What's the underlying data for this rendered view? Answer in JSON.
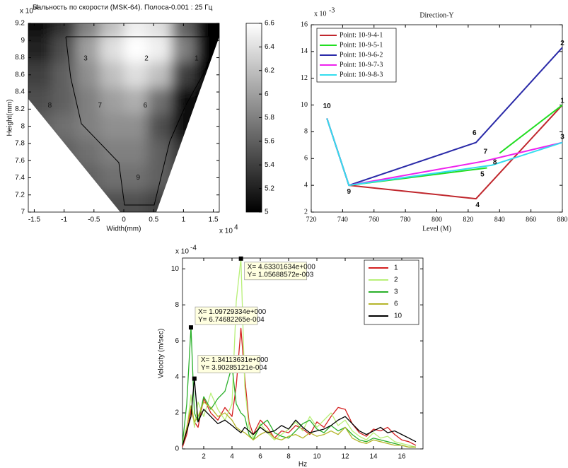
{
  "chart_data": [
    {
      "type": "heatmap",
      "title": "Бальность по скорости (MSK-64). Полоса-0.001 : 25 Гц",
      "xlabel": "Width(mm)",
      "ylabel": "Height(mm)",
      "x_multiplier": {
        "base": "x 10",
        "exponent": "4"
      },
      "y_multiplier": {
        "base": "x 10",
        "exponent": "4"
      },
      "colormap": "gray",
      "x": [
        -1.4,
        -1.0,
        -0.6,
        -0.2,
        0.2,
        0.6,
        1.0,
        1.4
      ],
      "y": [
        9.2,
        8.9,
        8.6,
        8.3,
        8.0,
        7.7,
        7.4,
        7.1
      ],
      "z": [
        [
          5.1,
          5.3,
          5.8,
          6.2,
          6.5,
          6.4,
          5.6,
          5.0
        ],
        [
          5.2,
          5.5,
          6.0,
          6.4,
          6.6,
          6.5,
          5.8,
          5.0
        ],
        [
          5.4,
          5.6,
          5.9,
          6.2,
          6.4,
          6.2,
          5.4,
          5.0
        ],
        [
          5.5,
          5.6,
          5.8,
          6.0,
          6.1,
          5.7,
          5.1,
          5.0
        ],
        [
          5.6,
          5.7,
          5.8,
          5.9,
          5.9,
          5.5,
          5.1,
          5.1
        ],
        [
          5.6,
          5.6,
          5.7,
          5.8,
          5.8,
          5.6,
          5.3,
          5.2
        ],
        [
          5.5,
          5.5,
          5.6,
          5.7,
          5.7,
          5.6,
          5.4,
          5.3
        ],
        [
          5.4,
          5.4,
          5.5,
          5.5,
          5.5,
          5.4,
          5.3,
          5.2
        ]
      ],
      "xlim": [
        -1.6,
        1.6
      ],
      "ylim": [
        7,
        9.2
      ],
      "xticks": [
        -1.5,
        -1,
        -0.5,
        0,
        0.5,
        1,
        1.5
      ],
      "yticks": [
        7,
        7.2,
        7.4,
        7.6,
        7.8,
        8,
        8.2,
        8.4,
        8.6,
        8.8,
        9,
        9.2
      ],
      "colorbar": {
        "clim": [
          5,
          6.6
        ],
        "ticks": [
          5,
          5.2,
          5.4,
          5.6,
          5.8,
          6,
          6.2,
          6.4,
          6.6
        ]
      },
      "points": [
        {
          "label": "3",
          "x": -0.64,
          "y": 8.79
        },
        {
          "label": "2",
          "x": 0.38,
          "y": 8.79
        },
        {
          "label": "1",
          "x": 1.22,
          "y": 8.79
        },
        {
          "label": "8",
          "x": -1.24,
          "y": 8.24
        },
        {
          "label": "7",
          "x": -0.4,
          "y": 8.24
        },
        {
          "label": "6",
          "x": 0.36,
          "y": 8.24
        },
        {
          "label": "5",
          "x": 1.02,
          "y": 8.24
        },
        {
          "label": "9",
          "x": 0.24,
          "y": 7.4
        }
      ]
    },
    {
      "type": "line",
      "title": "Direction-Y",
      "xlabel": "Level (M)",
      "y_multiplier": {
        "base": "x 10",
        "exponent": "-3"
      },
      "xlim": [
        720,
        880
      ],
      "ylim": [
        2,
        16
      ],
      "xticks": [
        720,
        740,
        760,
        780,
        800,
        820,
        840,
        860,
        880
      ],
      "yticks": [
        2,
        4,
        6,
        8,
        10,
        12,
        14,
        16
      ],
      "legend": "upper-left",
      "series": [
        {
          "name": "Point: 10-9-4-1",
          "color": "#c0272d",
          "x": [
            730,
            744,
            825,
            880
          ],
          "values": [
            9,
            4,
            3,
            10
          ]
        },
        {
          "name": "Point: 10-9-5-1",
          "color": "#22dd22",
          "x": [
            730,
            744,
            832,
            836,
            840,
            880
          ],
          "values": [
            9,
            4,
            5.3,
            null,
            6.4,
            10
          ]
        },
        {
          "name": "Point: 10-9-6-2",
          "color": "#2a2aa8",
          "x": [
            730,
            744,
            825,
            880
          ],
          "values": [
            9,
            4,
            7.2,
            14.3
          ]
        },
        {
          "name": "Point: 10-9-7-3",
          "color": "#ee22ee",
          "x": [
            730,
            744,
            830,
            880
          ],
          "values": [
            9,
            4,
            5.8,
            7.2
          ]
        },
        {
          "name": "Point: 10-9-8-3",
          "color": "#33ddee",
          "x": [
            730,
            744,
            835,
            880
          ],
          "values": [
            9,
            4,
            5.5,
            7.2
          ]
        }
      ],
      "points": [
        {
          "label": "10",
          "x": 730,
          "y": 9.9
        },
        {
          "label": "9",
          "x": 744,
          "y": 3.5
        },
        {
          "label": "4",
          "x": 826,
          "y": 2.5
        },
        {
          "label": "1",
          "x": 880,
          "y": 10.3
        },
        {
          "label": "2",
          "x": 880,
          "y": 14.6
        },
        {
          "label": "3",
          "x": 880,
          "y": 7.6
        },
        {
          "label": "6",
          "x": 824,
          "y": 7.9
        },
        {
          "label": "7",
          "x": 831,
          "y": 6.5
        },
        {
          "label": "8",
          "x": 837,
          "y": 5.7
        },
        {
          "label": "5",
          "x": 829,
          "y": 4.8
        }
      ]
    },
    {
      "type": "line",
      "xlabel": "Hz",
      "ylabel": "Velocity (m/sec)",
      "y_multiplier": {
        "base": "x 10",
        "exponent": "-4"
      },
      "xlim": [
        0.5,
        17.5
      ],
      "ylim": [
        0,
        10.6
      ],
      "xticks": [
        2,
        4,
        6,
        8,
        10,
        12,
        14,
        16
      ],
      "yticks": [
        0,
        2,
        4,
        6,
        8,
        10
      ],
      "legend": "upper-right",
      "x": [
        0.5,
        0.8,
        1.1,
        1.34,
        1.6,
        2,
        2.5,
        3,
        3.5,
        4,
        4.3,
        4.63,
        4.9,
        5.2,
        5.5,
        6,
        6.5,
        7,
        7.5,
        8,
        8.5,
        9,
        9.5,
        10,
        10.5,
        11,
        11.5,
        12,
        12.5,
        13,
        13.5,
        14,
        14.5,
        15,
        15.5,
        16,
        16.5,
        17
      ],
      "series": [
        {
          "name": "1",
          "color": "#d42020",
          "values": [
            0.1,
            0.8,
            2.2,
            1.5,
            1.2,
            2.8,
            2.0,
            1.6,
            2.3,
            1.8,
            3.5,
            6.7,
            4.0,
            1.5,
            0.8,
            1.6,
            1.2,
            0.6,
            1.0,
            0.9,
            1.3,
            1.1,
            0.8,
            1.5,
            1.2,
            1.8,
            2.3,
            2.2,
            1.4,
            0.9,
            0.7,
            1.1,
            1.0,
            1.2,
            0.8,
            0.5,
            0.4,
            0.2
          ]
        },
        {
          "name": "2",
          "color": "#b8f078",
          "values": [
            0.2,
            1.0,
            3.0,
            1.2,
            2.6,
            1.8,
            3.1,
            2.2,
            1.6,
            2.5,
            8.2,
            10.57,
            3.5,
            1.2,
            0.6,
            1.4,
            0.9,
            0.5,
            0.8,
            1.1,
            1.5,
            1.0,
            1.8,
            1.2,
            1.6,
            2.0,
            1.3,
            1.6,
            1.0,
            0.7,
            0.5,
            0.9,
            0.6,
            0.7,
            0.4,
            0.3,
            0.2,
            0.1
          ]
        },
        {
          "name": "3",
          "color": "#2ab02a",
          "values": [
            0.3,
            2.5,
            6.75,
            2.0,
            1.5,
            2.9,
            2.2,
            2.8,
            3.2,
            4.6,
            2.5,
            2.0,
            1.8,
            0.8,
            0.5,
            1.3,
            1.6,
            0.9,
            0.7,
            0.6,
            1.0,
            1.4,
            1.6,
            1.1,
            0.9,
            1.3,
            1.0,
            1.2,
            0.8,
            0.5,
            0.4,
            0.6,
            0.5,
            0.4,
            0.3,
            0.2,
            0.1,
            0.1
          ]
        },
        {
          "name": "6",
          "color": "#b5b52a",
          "values": [
            0.2,
            1.2,
            2.4,
            1.5,
            1.8,
            2.6,
            2.3,
            1.8,
            2.0,
            1.6,
            1.2,
            1.0,
            0.9,
            0.7,
            0.5,
            0.8,
            1.0,
            0.6,
            0.5,
            0.7,
            0.8,
            0.6,
            0.9,
            0.7,
            0.8,
            1.0,
            0.8,
            1.2,
            0.6,
            0.4,
            0.3,
            0.5,
            0.4,
            0.3,
            0.2,
            0.2,
            0.1,
            0.1
          ]
        },
        {
          "name": "10",
          "color": "#000000",
          "values": [
            0.2,
            1.0,
            1.8,
            3.9,
            1.5,
            2.2,
            1.8,
            1.4,
            1.6,
            1.3,
            1.1,
            0.9,
            1.2,
            1.0,
            0.8,
            1.2,
            0.9,
            1.0,
            1.3,
            1.1,
            1.6,
            1.2,
            0.9,
            1.0,
            1.1,
            1.3,
            1.6,
            1.8,
            1.4,
            1.0,
            0.8,
            1.0,
            1.2,
            0.9,
            1.0,
            0.8,
            0.6,
            0.4
          ]
        }
      ],
      "datatips": [
        {
          "x": 4.63301634,
          "y": 10.5688572,
          "x_label": "X= 4.63301634e+000",
          "y_label": "Y= 1.05688572e-003"
        },
        {
          "x": 1.09729334,
          "y": 6.74682265,
          "x_label": "X= 1.09729334e+000",
          "y_label": "Y= 6.74682265e-004"
        },
        {
          "x": 1.34113631,
          "y": 3.90285121,
          "x_label": "X= 1.34113631e+000",
          "y_label": "Y= 3.90285121e-004"
        }
      ]
    }
  ]
}
